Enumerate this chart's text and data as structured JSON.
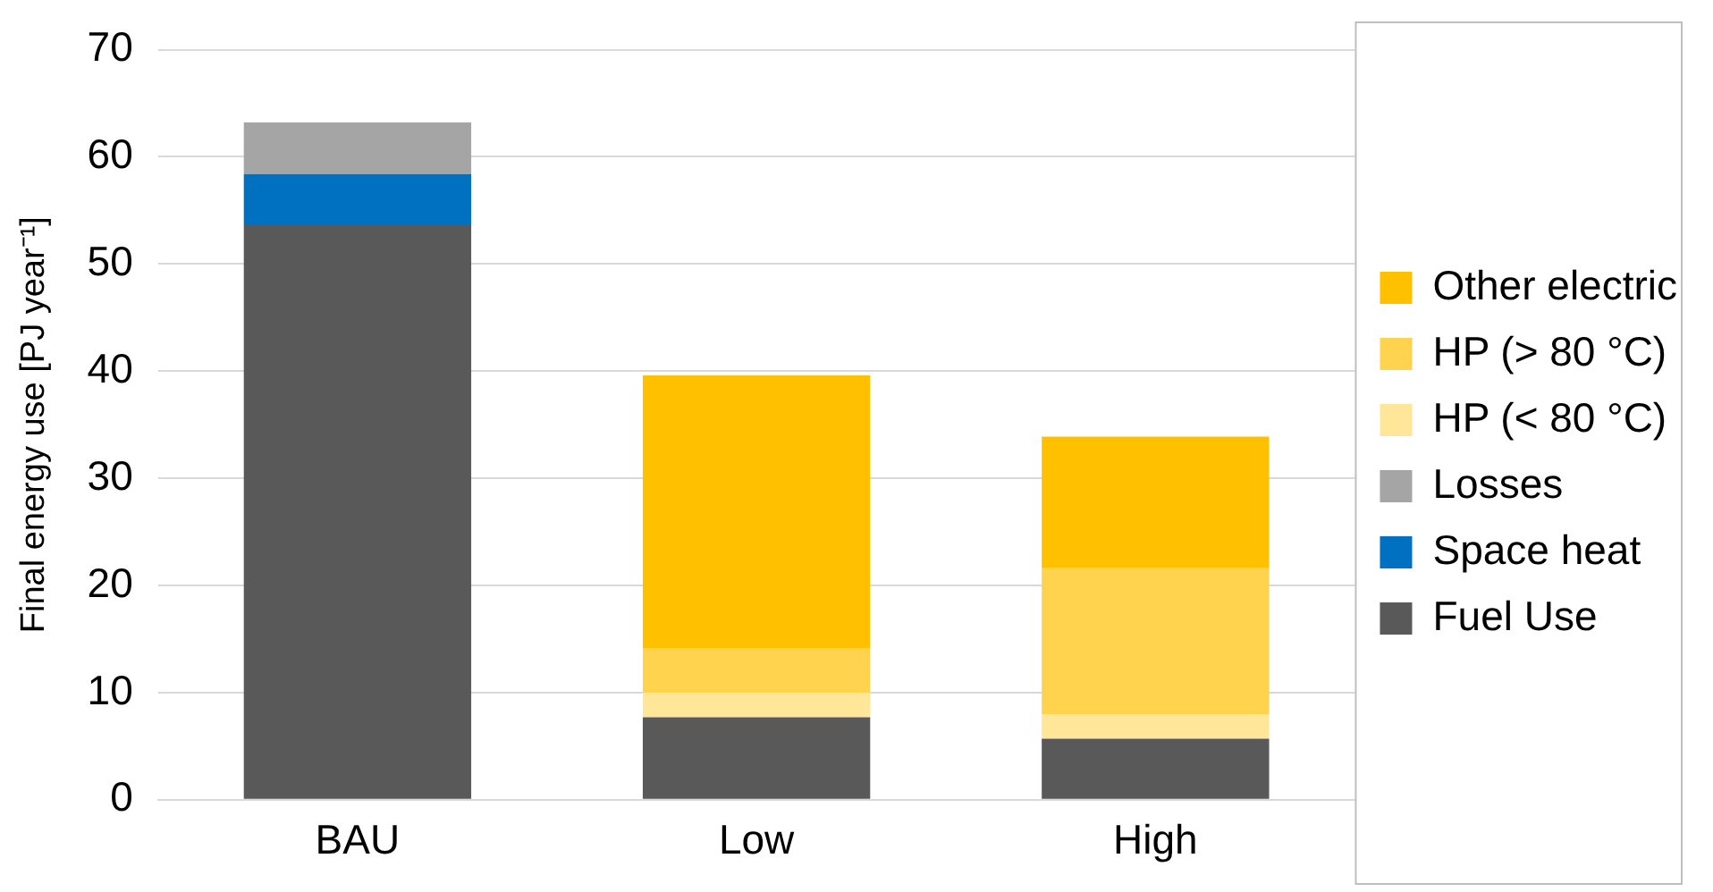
{
  "chart_data": {
    "type": "bar",
    "stacked": true,
    "ylabel": "Final energy use [PJ year⁻¹]",
    "categories": [
      "BAU",
      "Low",
      "High"
    ],
    "series": [
      {
        "name": "Fuel Use",
        "color": "#595959",
        "values": [
          53.7,
          7.7,
          5.7
        ]
      },
      {
        "name": "Space heat",
        "color": "#0070c0",
        "values": [
          4.7,
          null,
          null
        ]
      },
      {
        "name": "Losses",
        "color": "#a5a5a5",
        "values": [
          4.8,
          null,
          null
        ]
      },
      {
        "name": "HP (< 80 °C)",
        "color": "#ffe699",
        "values": [
          null,
          2.3,
          2.3
        ]
      },
      {
        "name": "HP (> 80 °C)",
        "color": "#ffd34d",
        "values": [
          null,
          4.1,
          13.6
        ]
      },
      {
        "name": "Other electric",
        "color": "#ffc000",
        "values": [
          null,
          25.5,
          12.3
        ]
      }
    ],
    "ylim": [
      0,
      70
    ],
    "yticks": [
      0,
      10,
      20,
      30,
      40,
      50,
      60,
      70
    ],
    "grid": "y",
    "legend": "right"
  }
}
